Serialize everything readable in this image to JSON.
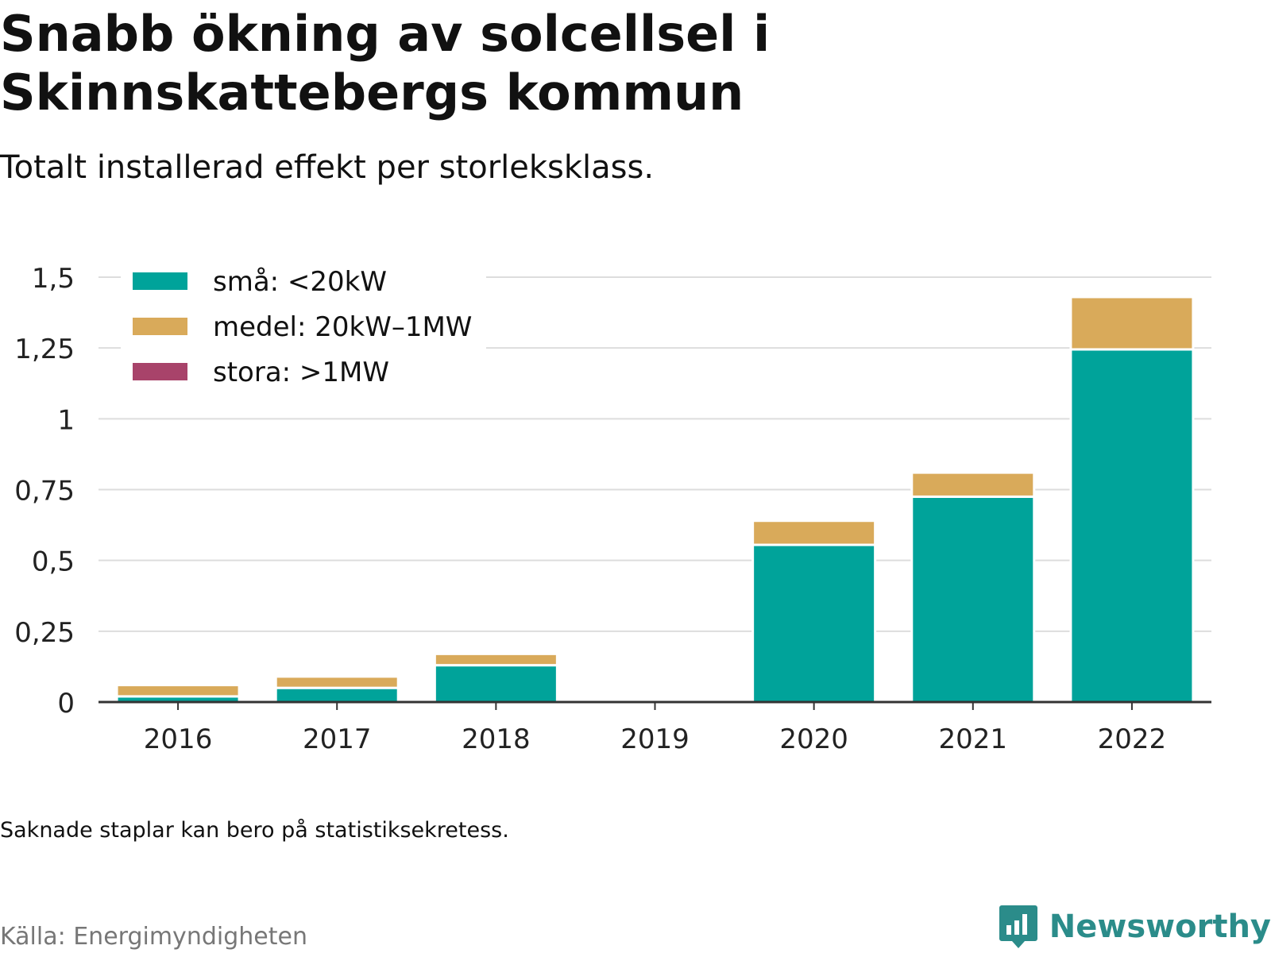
{
  "header": {
    "title": "Snabb ökning av solcellsel i Skinnskattebergs kommun",
    "subtitle": "Totalt installerad effekt per storleksklass."
  },
  "footer": {
    "note": "Saknade staplar kan bero på statistiksekretess.",
    "source": "Källa: Energimyndigheten",
    "brand": "Newsworthy"
  },
  "colors": {
    "small": "#00a39a",
    "medium": "#d9aa5a",
    "large": "#a8436a",
    "grid": "#dddddd",
    "axis": "#333333"
  },
  "chart_data": {
    "type": "bar",
    "stacked": true,
    "title": "Snabb ökning av solcellsel i Skinnskattebergs kommun",
    "subtitle": "Totalt installerad effekt per storleksklass.",
    "xlabel": "",
    "ylabel": "",
    "categories": [
      "2016",
      "2017",
      "2018",
      "2019",
      "2020",
      "2021",
      "2022"
    ],
    "ylim": [
      0,
      1.5
    ],
    "yticks": [
      0,
      0.25,
      0.5,
      0.75,
      1,
      1.25,
      1.5
    ],
    "ytick_labels": [
      "0",
      "0,25",
      "0,5",
      "0,75",
      "1",
      "1,25",
      "1,5"
    ],
    "grid": true,
    "legend_position": "top-left",
    "series": [
      {
        "name": "små: <20kW",
        "color": "#00a39a",
        "values": [
          0.02,
          0.05,
          0.13,
          null,
          0.555,
          0.725,
          1.245
        ]
      },
      {
        "name": "medel: 20kW–1MW",
        "color": "#d9aa5a",
        "values": [
          0.04,
          0.04,
          0.04,
          null,
          0.085,
          0.085,
          0.185
        ]
      },
      {
        "name": "stora: >1MW",
        "color": "#a8436a",
        "values": [
          0,
          0,
          0,
          null,
          0,
          0,
          0
        ]
      }
    ]
  }
}
